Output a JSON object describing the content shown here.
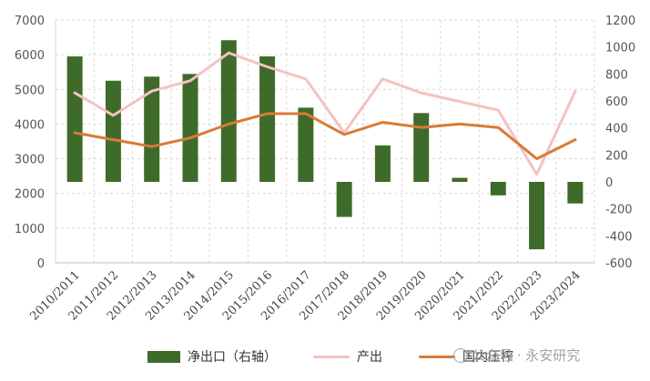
{
  "chart_data": {
    "type": "bar+line",
    "categories": [
      "2010/2011",
      "2011/2012",
      "2012/2013",
      "2013/2014",
      "2014/2015",
      "2015/2016",
      "2016/2017",
      "2017/2018",
      "2018/2019",
      "2019/2020",
      "2020/2021",
      "2021/2022",
      "2022/2023",
      "2023/2024"
    ],
    "y_left": {
      "min": 0,
      "max": 7000,
      "step": 1000,
      "ticks": [
        "0",
        "1000",
        "2000",
        "3000",
        "4000",
        "5000",
        "6000",
        "7000"
      ]
    },
    "y_right": {
      "min": -600,
      "max": 1200,
      "step": 200,
      "ticks": [
        "-600",
        "-400",
        "-200",
        "0",
        "200",
        "400",
        "600",
        "800",
        "1000",
        "1200"
      ]
    },
    "grid": true,
    "legend_position": "bottom",
    "series": [
      {
        "name": "净出口（右轴）",
        "type": "bar",
        "axis": "right",
        "color": "#3f6b2a",
        "values": [
          930,
          750,
          780,
          800,
          1050,
          930,
          550,
          -260,
          270,
          510,
          30,
          -100,
          -500,
          -160
        ]
      },
      {
        "name": "产出",
        "type": "line",
        "axis": "left",
        "color": "#f4c2c2",
        "values": [
          4900,
          4250,
          4950,
          5250,
          6050,
          5650,
          5300,
          3750,
          5300,
          4900,
          4650,
          4400,
          2550,
          4950
        ]
      },
      {
        "name": "国内压榨",
        "type": "line",
        "axis": "left",
        "color": "#d97b35",
        "values": [
          3750,
          3550,
          3350,
          3600,
          4000,
          4300,
          4300,
          3700,
          4050,
          3900,
          4000,
          3900,
          3000,
          3550
        ]
      }
    ]
  },
  "legend": {
    "items": [
      {
        "label": "净出口（右轴）",
        "color": "#3f6b2a",
        "style": "box"
      },
      {
        "label": "产出",
        "color": "#f4c2c2",
        "style": "line"
      },
      {
        "label": "国内压榨",
        "color": "#d97b35",
        "style": "line"
      }
    ]
  },
  "watermark": {
    "text": "公众号 · 永安研究",
    "icon": "wechat-icon"
  }
}
